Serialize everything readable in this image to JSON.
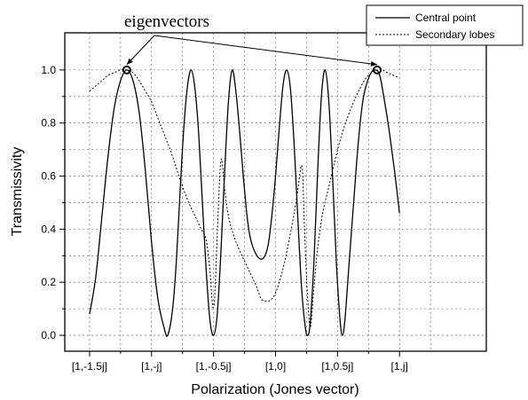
{
  "chart_data": {
    "type": "line",
    "title": "",
    "xlabel": "Polarization (Jones vector)",
    "ylabel": "Transmissivity",
    "xlim": [
      -1.7,
      1.7
    ],
    "ylim": [
      -0.06,
      1.14
    ],
    "x_ticks": [
      {
        "value": -1.5,
        "label": "[1,-1.5j]"
      },
      {
        "value": -1.0,
        "label": "[1,-j]"
      },
      {
        "value": -0.5,
        "label": "[1,-0.5j]"
      },
      {
        "value": 0.0,
        "label": "[1,0]"
      },
      {
        "value": 0.5,
        "label": "[1,0.5j]"
      },
      {
        "value": 1.0,
        "label": "[1,j]"
      }
    ],
    "y_ticks": [
      {
        "value": 0.0,
        "label": "0.0"
      },
      {
        "value": 0.2,
        "label": "0.2"
      },
      {
        "value": 0.4,
        "label": "0.4"
      },
      {
        "value": 0.6,
        "label": "0.6"
      },
      {
        "value": 0.8,
        "label": "0.8"
      },
      {
        "value": 1.0,
        "label": "1.0"
      }
    ],
    "grid": true,
    "legend_position": "top-right",
    "series": [
      {
        "name": "Central point",
        "style": "solid",
        "points": [
          [
            -1.5,
            0.08
          ],
          [
            -1.45,
            0.22
          ],
          [
            -1.4,
            0.45
          ],
          [
            -1.35,
            0.68
          ],
          [
            -1.3,
            0.86
          ],
          [
            -1.25,
            0.96
          ],
          [
            -1.2,
            1.0
          ],
          [
            -1.15,
            0.96
          ],
          [
            -1.1,
            0.84
          ],
          [
            -1.05,
            0.62
          ],
          [
            -1.0,
            0.35
          ],
          [
            -0.95,
            0.14
          ],
          [
            -0.9,
            0.03
          ],
          [
            -0.87,
            0.0
          ],
          [
            -0.83,
            0.1
          ],
          [
            -0.8,
            0.28
          ],
          [
            -0.77,
            0.54
          ],
          [
            -0.74,
            0.78
          ],
          [
            -0.71,
            0.94
          ],
          [
            -0.68,
            1.0
          ],
          [
            -0.65,
            0.93
          ],
          [
            -0.62,
            0.76
          ],
          [
            -0.59,
            0.5
          ],
          [
            -0.56,
            0.25
          ],
          [
            -0.53,
            0.06
          ],
          [
            -0.5,
            0.0
          ],
          [
            -0.47,
            0.08
          ],
          [
            -0.44,
            0.32
          ],
          [
            -0.41,
            0.62
          ],
          [
            -0.38,
            0.88
          ],
          [
            -0.35,
            1.0
          ],
          [
            -0.32,
            0.92
          ],
          [
            -0.29,
            0.77
          ],
          [
            -0.26,
            0.6
          ],
          [
            -0.23,
            0.45
          ],
          [
            -0.2,
            0.36
          ],
          [
            -0.15,
            0.3
          ],
          [
            -0.1,
            0.29
          ],
          [
            -0.06,
            0.34
          ],
          [
            -0.03,
            0.45
          ],
          [
            0.0,
            0.6
          ],
          [
            0.03,
            0.78
          ],
          [
            0.06,
            0.94
          ],
          [
            0.09,
            1.0
          ],
          [
            0.12,
            0.93
          ],
          [
            0.15,
            0.72
          ],
          [
            0.18,
            0.44
          ],
          [
            0.21,
            0.18
          ],
          [
            0.24,
            0.03
          ],
          [
            0.26,
            0.0
          ],
          [
            0.28,
            0.05
          ],
          [
            0.31,
            0.28
          ],
          [
            0.34,
            0.62
          ],
          [
            0.37,
            0.9
          ],
          [
            0.4,
            1.0
          ],
          [
            0.43,
            0.88
          ],
          [
            0.46,
            0.6
          ],
          [
            0.49,
            0.28
          ],
          [
            0.52,
            0.06
          ],
          [
            0.54,
            0.0
          ],
          [
            0.56,
            0.06
          ],
          [
            0.59,
            0.25
          ],
          [
            0.63,
            0.5
          ],
          [
            0.67,
            0.74
          ],
          [
            0.71,
            0.9
          ],
          [
            0.76,
            0.98
          ],
          [
            0.8,
            1.0
          ],
          [
            0.84,
            0.98
          ],
          [
            0.88,
            0.88
          ],
          [
            0.92,
            0.76
          ],
          [
            0.96,
            0.62
          ],
          [
            1.0,
            0.46
          ]
        ]
      },
      {
        "name": "Secondary lobes",
        "style": "dashed",
        "points": [
          [
            -1.5,
            0.92
          ],
          [
            -1.45,
            0.94
          ],
          [
            -1.4,
            0.96
          ],
          [
            -1.35,
            0.98
          ],
          [
            -1.3,
            0.99
          ],
          [
            -1.25,
            1.0
          ],
          [
            -1.2,
            1.0
          ],
          [
            -1.15,
            0.99
          ],
          [
            -1.1,
            0.96
          ],
          [
            -1.05,
            0.92
          ],
          [
            -1.0,
            0.88
          ],
          [
            -0.95,
            0.82
          ],
          [
            -0.9,
            0.76
          ],
          [
            -0.85,
            0.7
          ],
          [
            -0.8,
            0.63
          ],
          [
            -0.75,
            0.56
          ],
          [
            -0.7,
            0.5
          ],
          [
            -0.65,
            0.45
          ],
          [
            -0.6,
            0.4
          ],
          [
            -0.56,
            0.36
          ],
          [
            -0.53,
            0.25
          ],
          [
            -0.51,
            0.12
          ],
          [
            -0.5,
            0.11
          ],
          [
            -0.49,
            0.15
          ],
          [
            -0.47,
            0.38
          ],
          [
            -0.45,
            0.6
          ],
          [
            -0.44,
            0.66
          ],
          [
            -0.43,
            0.65
          ],
          [
            -0.41,
            0.55
          ],
          [
            -0.38,
            0.45
          ],
          [
            -0.34,
            0.38
          ],
          [
            -0.3,
            0.33
          ],
          [
            -0.25,
            0.28
          ],
          [
            -0.2,
            0.23
          ],
          [
            -0.15,
            0.18
          ],
          [
            -0.12,
            0.14
          ],
          [
            -0.09,
            0.13
          ],
          [
            -0.05,
            0.13
          ],
          [
            -0.01,
            0.15
          ],
          [
            0.03,
            0.2
          ],
          [
            0.07,
            0.27
          ],
          [
            0.11,
            0.36
          ],
          [
            0.15,
            0.46
          ],
          [
            0.18,
            0.55
          ],
          [
            0.2,
            0.62
          ],
          [
            0.21,
            0.64
          ],
          [
            0.22,
            0.6
          ],
          [
            0.23,
            0.45
          ],
          [
            0.25,
            0.22
          ],
          [
            0.27,
            0.06
          ],
          [
            0.28,
            0.03
          ],
          [
            0.29,
            0.06
          ],
          [
            0.31,
            0.18
          ],
          [
            0.34,
            0.33
          ],
          [
            0.38,
            0.46
          ],
          [
            0.43,
            0.56
          ],
          [
            0.48,
            0.66
          ],
          [
            0.53,
            0.75
          ],
          [
            0.58,
            0.82
          ],
          [
            0.63,
            0.88
          ],
          [
            0.68,
            0.93
          ],
          [
            0.73,
            0.97
          ],
          [
            0.78,
            0.99
          ],
          [
            0.82,
            1.0
          ],
          [
            0.86,
            1.0
          ],
          [
            0.9,
            0.99
          ],
          [
            0.95,
            0.98
          ],
          [
            1.0,
            0.97
          ]
        ]
      }
    ],
    "annotations": [
      {
        "text": "eigenvectors",
        "points": [
          [
            -1.2,
            1.0
          ],
          [
            0.82,
            1.0
          ]
        ]
      }
    ]
  }
}
